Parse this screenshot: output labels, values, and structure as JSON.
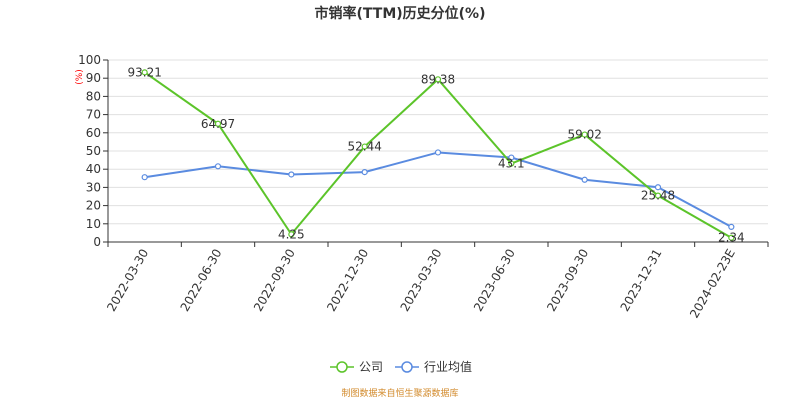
{
  "chart_data": {
    "type": "line",
    "title": "市销率(TTM)历史分位(%)",
    "unit_label": "(%)",
    "categories": [
      "2022-03-30",
      "2022-06-30",
      "2022-09-30",
      "2022-12-30",
      "2023-03-30",
      "2023-06-30",
      "2023-09-30",
      "2023-12-31",
      "2024-02-23E"
    ],
    "ylim": [
      0,
      100
    ],
    "yticks": [
      0,
      10,
      20,
      30,
      40,
      50,
      60,
      70,
      80,
      90,
      100
    ],
    "grid": true,
    "legend_position": "bottom",
    "series": [
      {
        "name": "公司",
        "color": "#5cc42a",
        "values": [
          93.21,
          64.97,
          4.25,
          52.44,
          89.38,
          43.1,
          59.02,
          25.48,
          2.34
        ],
        "labels": [
          "93.21",
          "64.97",
          "4.25",
          "52.44",
          "89.38",
          "43.1",
          "59.02",
          "25.48",
          "2.34"
        ],
        "show_labels": true
      },
      {
        "name": "行业均值",
        "color": "#5a8be0",
        "values": [
          35.6,
          41.6,
          37.1,
          38.4,
          49.2,
          46.4,
          34.2,
          30.1,
          8.3
        ],
        "show_labels": false
      }
    ],
    "source_note": "制图数据来自恒生聚源数据库"
  }
}
